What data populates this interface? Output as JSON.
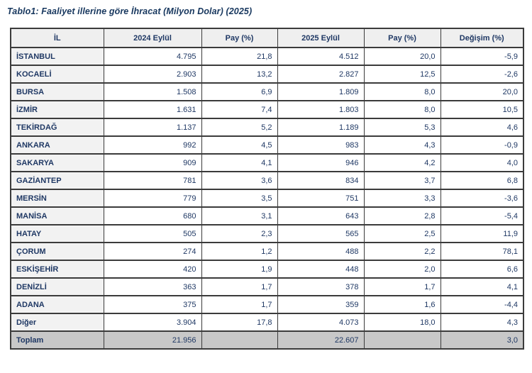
{
  "title": "Tablo1: Faaliyet illerine göre İhracat (Milyon Dolar) (2025)",
  "table": {
    "columns": [
      "İL",
      "2024 Eylül",
      "Pay (%)",
      "2025 Eylül",
      "Pay (%)",
      "Değişim (%)"
    ],
    "rows": [
      [
        "İSTANBUL",
        "4.795",
        "21,8",
        "4.512",
        "20,0",
        "-5,9"
      ],
      [
        "KOCAELİ",
        "2.903",
        "13,2",
        "2.827",
        "12,5",
        "-2,6"
      ],
      [
        "BURSA",
        "1.508",
        "6,9",
        "1.809",
        "8,0",
        "20,0"
      ],
      [
        "İZMİR",
        "1.631",
        "7,4",
        "1.803",
        "8,0",
        "10,5"
      ],
      [
        "TEKİRDAĞ",
        "1.137",
        "5,2",
        "1.189",
        "5,3",
        "4,6"
      ],
      [
        "ANKARA",
        "992",
        "4,5",
        "983",
        "4,3",
        "-0,9"
      ],
      [
        "SAKARYA",
        "909",
        "4,1",
        "946",
        "4,2",
        "4,0"
      ],
      [
        "GAZİANTEP",
        "781",
        "3,6",
        "834",
        "3,7",
        "6,8"
      ],
      [
        "MERSİN",
        "779",
        "3,5",
        "751",
        "3,3",
        "-3,6"
      ],
      [
        "MANİSA",
        "680",
        "3,1",
        "643",
        "2,8",
        "-5,4"
      ],
      [
        "HATAY",
        "505",
        "2,3",
        "565",
        "2,5",
        "11,9"
      ],
      [
        "ÇORUM",
        "274",
        "1,2",
        "488",
        "2,2",
        "78,1"
      ],
      [
        "ESKİŞEHİR",
        "420",
        "1,9",
        "448",
        "2,0",
        "6,6"
      ],
      [
        "DENİZLİ",
        "363",
        "1,7",
        "378",
        "1,7",
        "4,1"
      ],
      [
        "ADANA",
        "375",
        "1,7",
        "359",
        "1,6",
        "-4,4"
      ],
      [
        "Diğer",
        "3.904",
        "17,8",
        "4.073",
        "18,0",
        "4,3"
      ]
    ],
    "total_row": [
      "Toplam",
      "21.956",
      "",
      "22.607",
      "",
      "3,0"
    ]
  },
  "colors": {
    "text_navy": "#1f3864",
    "title_navy": "#17375e",
    "header_bg": "#efefef",
    "il_column_bg": "#f2f2f2",
    "total_row_bg": "#c8c8c8",
    "border": "#3b3b3b",
    "page_bg": "#ffffff"
  }
}
